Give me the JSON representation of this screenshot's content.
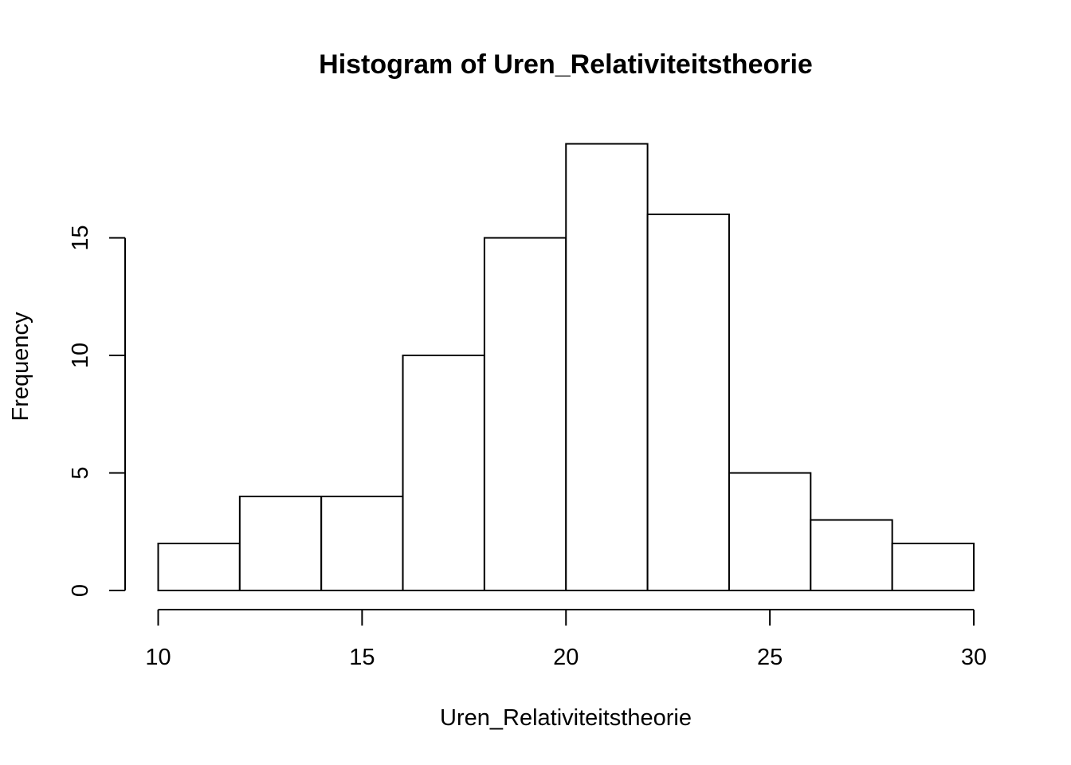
{
  "chart_data": {
    "type": "bar",
    "title": "Histogram of Uren_Relativiteitstheorie",
    "xlabel": "Uren_Relativiteitstheorie",
    "ylabel": "Frequency",
    "bins": [
      {
        "start": 10,
        "end": 12,
        "count": 2
      },
      {
        "start": 12,
        "end": 14,
        "count": 4
      },
      {
        "start": 14,
        "end": 16,
        "count": 4
      },
      {
        "start": 16,
        "end": 18,
        "count": 10
      },
      {
        "start": 18,
        "end": 20,
        "count": 15
      },
      {
        "start": 20,
        "end": 22,
        "count": 19
      },
      {
        "start": 22,
        "end": 24,
        "count": 16
      },
      {
        "start": 24,
        "end": 26,
        "count": 5
      },
      {
        "start": 26,
        "end": 28,
        "count": 3
      },
      {
        "start": 28,
        "end": 30,
        "count": 2
      }
    ],
    "xlim": [
      10,
      30
    ],
    "ylim": [
      0,
      19
    ],
    "x_ticks": [
      10,
      15,
      20,
      25,
      30
    ],
    "y_ticks": [
      0,
      5,
      10,
      15
    ],
    "grid": false,
    "legend": "none",
    "bar_fill": "#ffffff",
    "bar_stroke": "#000000"
  }
}
